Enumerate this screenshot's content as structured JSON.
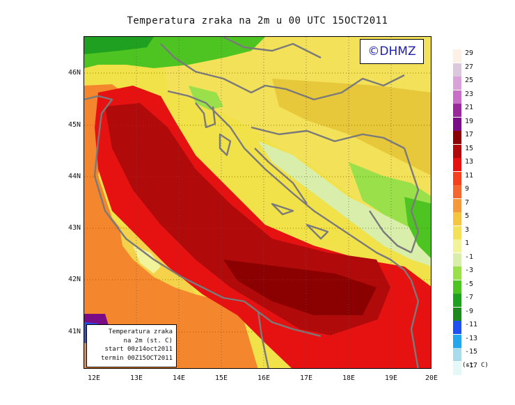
{
  "title": "Temperatura zraka na 2m u 00 UTC 15OCT2011",
  "copyright": "©DHMZ",
  "info_box": [
    "Temperatura zraka",
    "na 2m (st. C)",
    "start 00z14oct2011",
    "termin 00Z15OCT2011"
  ],
  "axes": {
    "x_ticks": [
      "12E",
      "13E",
      "14E",
      "15E",
      "16E",
      "17E",
      "18E",
      "19E",
      "20E"
    ],
    "y_ticks": [
      "46N",
      "45N",
      "44N",
      "43N",
      "42N",
      "41N"
    ]
  },
  "legend": {
    "units": "(st. C)",
    "labels": [
      "29",
      "27",
      "25",
      "23",
      "21",
      "19",
      "17",
      "15",
      "13",
      "11",
      "9",
      "7",
      "5",
      "3",
      "1",
      "-1",
      "-3",
      "-5",
      "-7",
      "-9",
      "-11",
      "-13",
      "-15",
      "-17"
    ],
    "colors": [
      "#fdf0e4",
      "#dcc8dc",
      "#d9a2d9",
      "#c870c8",
      "#9a2a9a",
      "#7a0c86",
      "#8b0000",
      "#b00a0a",
      "#e61212",
      "#f4421e",
      "#f4672e",
      "#f49a3a",
      "#f4c640",
      "#f4e15a",
      "#f2f49b",
      "#d8eeaa",
      "#9ae04a",
      "#4ec422",
      "#20a020",
      "#1e8a1e",
      "#2050f0",
      "#24a6ec",
      "#a8dcea",
      "#e4f8f8"
    ]
  },
  "chart_data": {
    "type": "heatmap",
    "title": "Temperatura zraka na 2m u 00 UTC 15OCT2011",
    "variable": "Temperatura zraka na 2m (st. C)",
    "valid_time": "00 UTC 15OCT2011",
    "run_start": "00z14oct2011",
    "lon_range": [
      11.8,
      20.0
    ],
    "lat_range": [
      40.3,
      46.8
    ],
    "contour_levels": [
      -17,
      -15,
      -13,
      -11,
      -9,
      -7,
      -5,
      -3,
      -1,
      1,
      3,
      5,
      7,
      9,
      11,
      13,
      15,
      17,
      19,
      21,
      23,
      25,
      27,
      29
    ],
    "observed_ranges": {
      "northern_alps": [
        -5,
        1
      ],
      "pannonian_plain": [
        3,
        7
      ],
      "dinaric_interior": [
        1,
        5
      ],
      "adriatic_sea": [
        15,
        19
      ],
      "italian_coast": [
        11,
        15
      ],
      "italian_interior": [
        3,
        9
      ]
    }
  }
}
